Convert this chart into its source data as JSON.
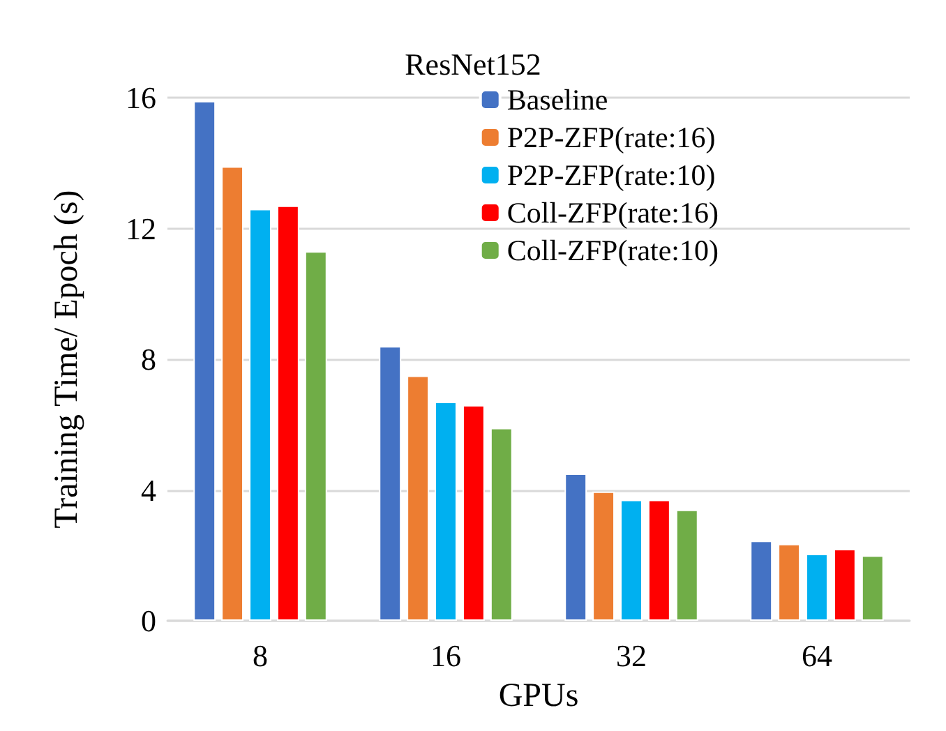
{
  "chart_data": {
    "type": "bar",
    "title": "ResNet152",
    "xlabel": "GPUs",
    "ylabel": "Training Time/ Epoch (s)",
    "categories": [
      "8",
      "16",
      "32",
      "64"
    ],
    "series": [
      {
        "name": "Baseline",
        "color": "#4472c4",
        "values": [
          15.9,
          8.4,
          4.5,
          2.45
        ]
      },
      {
        "name": "P2P-ZFP(rate:16)",
        "color": "#ed7d31",
        "values": [
          13.9,
          7.5,
          3.95,
          2.35
        ]
      },
      {
        "name": "P2P-ZFP(rate:10)",
        "color": "#00b0f0",
        "values": [
          12.6,
          6.7,
          3.7,
          2.05
        ]
      },
      {
        "name": "Coll-ZFP(rate:16)",
        "color": "#ff0000",
        "values": [
          12.7,
          6.6,
          3.7,
          2.2
        ]
      },
      {
        "name": "Coll-ZFP(rate:10)",
        "color": "#70ad47",
        "values": [
          11.3,
          5.9,
          3.4,
          2.0
        ]
      }
    ],
    "ylim": [
      0,
      16
    ],
    "yticks": [
      0,
      4,
      8,
      12,
      16
    ],
    "grid": "y",
    "legend": "top right"
  }
}
